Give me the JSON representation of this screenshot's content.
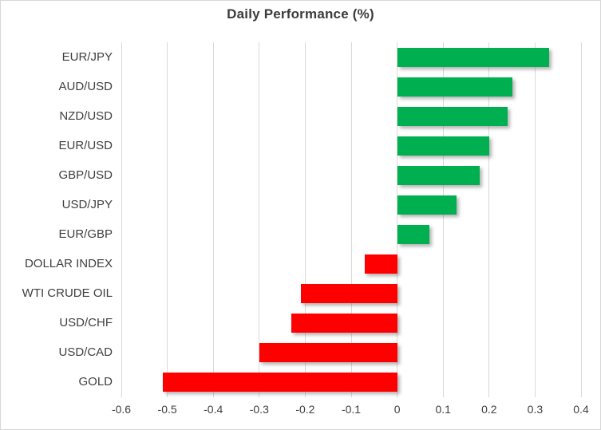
{
  "chart_data": {
    "type": "bar",
    "orientation": "horizontal",
    "title": "Daily Performance (%)",
    "categories": [
      "EUR/JPY",
      "AUD/USD",
      "NZD/USD",
      "EUR/USD",
      "GBP/USD",
      "USD/JPY",
      "EUR/GBP",
      "DOLLAR INDEX",
      "WTI CRUDE OIL",
      "USD/CHF",
      "USD/CAD",
      "GOLD"
    ],
    "values": [
      0.33,
      0.25,
      0.24,
      0.2,
      0.18,
      0.13,
      0.07,
      -0.07,
      -0.21,
      -0.23,
      -0.3,
      -0.51
    ],
    "xlabel": "",
    "ylabel": "",
    "xlim": [
      -0.6,
      0.4
    ],
    "xticks": [
      -0.6,
      -0.5,
      -0.4,
      -0.3,
      -0.2,
      -0.1,
      0,
      0.1,
      0.2,
      0.3,
      0.4
    ],
    "xtick_labels": [
      "-0.6",
      "-0.5",
      "-0.4",
      "-0.3",
      "-0.2",
      "-0.1",
      "0",
      "0.1",
      "0.2",
      "0.3",
      "0.4"
    ],
    "grid": true,
    "legend": false,
    "colors": {
      "positive": "#00b050",
      "negative": "#ff0000",
      "gridline": "#d9d9d9",
      "text": "#3f3f3f",
      "title_text": "#3b3b3b"
    }
  }
}
